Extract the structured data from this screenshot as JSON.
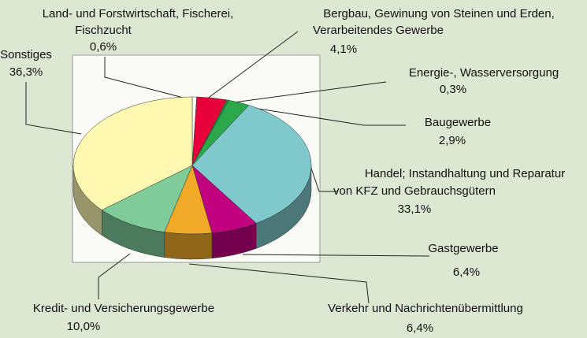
{
  "chart_data": {
    "type": "pie3d",
    "categories": [
      [
        "Land- und Forstwirtschaft, Fischerei,",
        "Fischzucht"
      ],
      [
        "Bergbau, Gewinung von Steinen und Erden,",
        "Verarbeitendes Gewerbe"
      ],
      [
        "Energie-, Wasserversorgung"
      ],
      [
        "Baugewerbe"
      ],
      [
        "Handel; Instandhaltung und Reparatur",
        "von  KFZ und Gebrauchsgütern"
      ],
      [
        "Gastgewerbe"
      ],
      [
        "Verkehr und Nachrichtenübermittlung"
      ],
      [
        "Kredit- und Versicherungsgewerbe"
      ],
      [
        "Sonstiges"
      ]
    ],
    "values": [
      0.6,
      4.1,
      0.3,
      2.9,
      33.1,
      6.4,
      6.4,
      10.0,
      36.3
    ],
    "value_labels": [
      "0,6%",
      "4,1%",
      "0,3%",
      "2,9%",
      "33,1%",
      "6,4%",
      "6,4%",
      "10,0%",
      "36,3%"
    ],
    "colors": [
      "#ffffff",
      "#e8003a",
      "#1b8f3a",
      "#2aa84a",
      "#7fc8cc",
      "#c0007f",
      "#f0aa28",
      "#7fcc99",
      "#fff8b0"
    ]
  }
}
